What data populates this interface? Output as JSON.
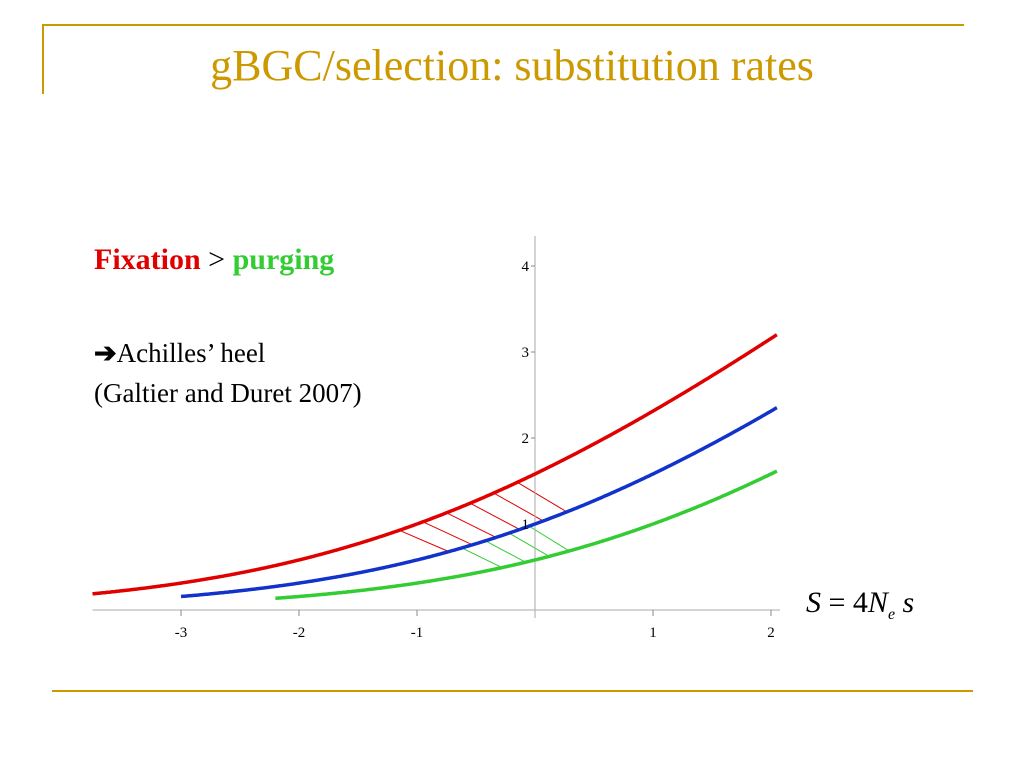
{
  "slide": {
    "title": "gBGC/selection: substitution rates",
    "headline_red": "Fixation",
    "headline_sep": ">",
    "headline_green": "purging",
    "point": "Achilles’ heel",
    "citation": "(Galtier and Duret 2007)"
  },
  "formula": {
    "lhs": "S",
    "eq": "=",
    "coef": "4",
    "var": "N",
    "sub": "e",
    "rhs": "s"
  },
  "colors": {
    "accent": "#CC9900",
    "red": "#E00000",
    "blue": "#1133CC",
    "green": "#33CC33"
  },
  "chart_data": {
    "type": "line",
    "xlim": [
      -3.75,
      2.05
    ],
    "ylim": [
      0,
      4.25
    ],
    "x_ticks": [
      {
        "value": -3,
        "label": "-3"
      },
      {
        "value": -2,
        "label": "-2"
      },
      {
        "value": -1,
        "label": "-1"
      },
      {
        "value": 1,
        "label": "1"
      },
      {
        "value": 2,
        "label": "2"
      }
    ],
    "y_ticks": [
      {
        "value": 1,
        "label": "1"
      },
      {
        "value": 2,
        "label": "2"
      },
      {
        "value": 3,
        "label": "3"
      },
      {
        "value": 4,
        "label": "4"
      }
    ],
    "series": [
      {
        "color": "red",
        "shift": 1,
        "x_start": -3.75
      },
      {
        "color": "blue",
        "shift": 0,
        "x_start": -3.0
      },
      {
        "color": "green",
        "shift": -1,
        "x_start": -2.2
      }
    ],
    "hatch_red_x": [
      -1.15,
      -0.95,
      -0.75,
      -0.55,
      -0.35,
      -0.15
    ],
    "hatch_green_x": [
      -0.62,
      -0.42,
      -0.22,
      -0.05
    ]
  }
}
